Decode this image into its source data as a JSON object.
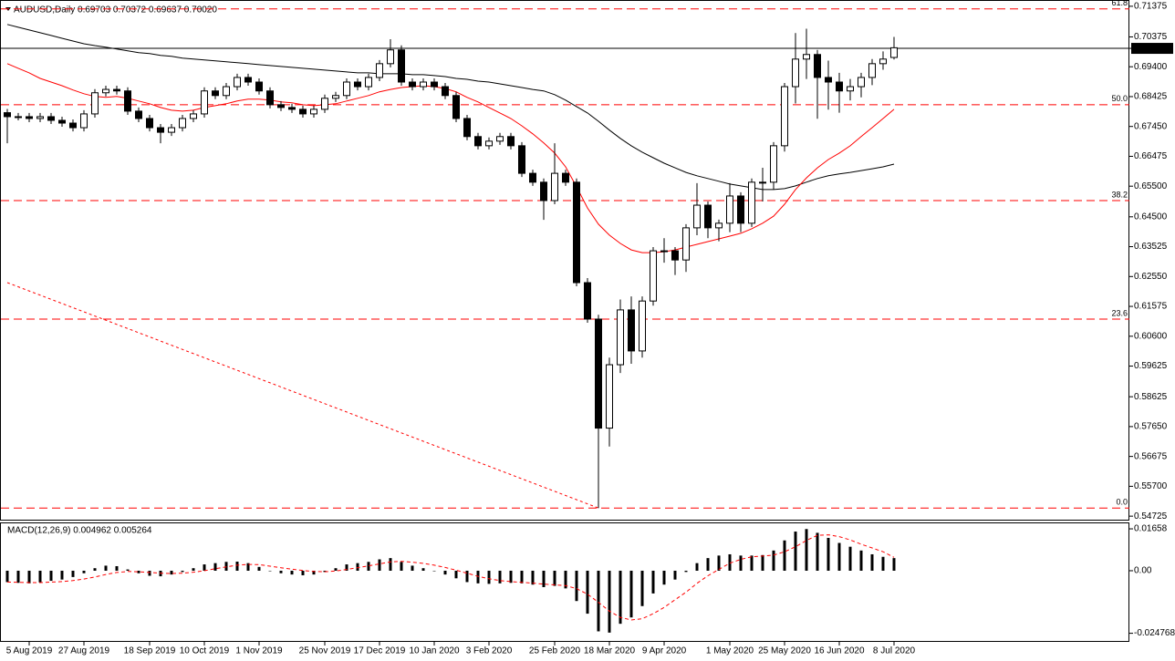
{
  "chart_data": [
    {
      "type": "candlestick",
      "title": "AUDUSD,Daily  0.69703 0.70372 0.69637 0.70020",
      "categories": [
        null,
        null,
        "5 Aug 2019",
        null,
        null,
        null,
        null,
        "27 Aug 2019",
        null,
        null,
        null,
        null,
        null,
        "18 Sep 2019",
        null,
        null,
        null,
        null,
        "10 Oct 2019",
        null,
        null,
        null,
        null,
        "1 Nov 2019",
        null,
        null,
        null,
        null,
        null,
        "25 Nov 2019",
        null,
        null,
        null,
        null,
        "17 Dec 2019",
        null,
        null,
        null,
        null,
        "10 Jan 2020",
        null,
        null,
        null,
        null,
        "3 Feb 2020",
        null,
        null,
        null,
        null,
        null,
        "25 Feb 2020",
        null,
        null,
        null,
        null,
        "18 Mar 2020",
        null,
        null,
        null,
        null,
        "9 Apr 2020",
        null,
        null,
        null,
        null,
        null,
        "1 May 2020",
        null,
        null,
        null,
        null,
        "25 May 2020",
        null,
        null,
        null,
        null,
        "16 Jun 2020",
        null,
        null,
        null,
        null,
        "8 Jul 2020"
      ],
      "open": [
        0.679,
        0.6777,
        0.6777,
        0.6771,
        0.6777,
        0.6765,
        0.6756,
        0.6741,
        0.6786,
        0.6855,
        0.6866,
        0.6861,
        0.6795,
        0.6771,
        0.6741,
        0.6726,
        0.6741,
        0.6771,
        0.6786,
        0.6861,
        0.6846,
        0.6875,
        0.6905,
        0.689,
        0.6861,
        0.6816,
        0.6807,
        0.6801,
        0.6786,
        0.6801,
        0.6837,
        0.6846,
        0.689,
        0.6875,
        0.6905,
        0.695,
        0.6995,
        0.689,
        0.6875,
        0.689,
        0.6875,
        0.6846,
        0.6771,
        0.6712,
        0.6682,
        0.6697,
        0.6712,
        0.6682,
        0.6592,
        0.6563,
        0.6503,
        0.6592,
        0.6563,
        0.6235,
        0.6116,
        0.576,
        0.5967,
        0.6146,
        0.6012,
        0.6175,
        0.6339,
        0.6339,
        0.6309,
        0.6414,
        0.6488,
        0.6414,
        0.6429,
        0.6518,
        0.6429,
        0.6563,
        0.6563,
        0.6682,
        0.6875,
        0.6965,
        0.698,
        0.6905,
        0.689,
        0.6861,
        0.6875,
        0.6905,
        0.695,
        0.69703
      ],
      "high": [
        0.6802,
        0.6789,
        0.6789,
        0.6789,
        0.6789,
        0.6777,
        0.6768,
        0.6798,
        0.6867,
        0.6878,
        0.6878,
        0.6873,
        0.6807,
        0.6783,
        0.6753,
        0.6753,
        0.6783,
        0.6798,
        0.6873,
        0.6873,
        0.6887,
        0.6917,
        0.6917,
        0.6902,
        0.6873,
        0.6828,
        0.6819,
        0.6813,
        0.6813,
        0.6849,
        0.6858,
        0.6902,
        0.6902,
        0.6917,
        0.6962,
        0.703,
        0.701,
        0.6902,
        0.6902,
        0.6902,
        0.6887,
        0.6858,
        0.6783,
        0.6724,
        0.6709,
        0.6724,
        0.6724,
        0.6694,
        0.6604,
        0.6575,
        0.669,
        0.6604,
        0.6575,
        0.625,
        0.613,
        0.599,
        0.618,
        0.619,
        0.619,
        0.6351,
        0.638,
        0.6351,
        0.6426,
        0.656,
        0.65,
        0.6441,
        0.656,
        0.653,
        0.6575,
        0.661,
        0.6694,
        0.6887,
        0.705,
        0.7064,
        0.6995,
        0.696,
        0.692,
        0.69,
        0.692,
        0.6965,
        0.699,
        0.70372
      ],
      "low": [
        0.669,
        0.6765,
        0.6759,
        0.6759,
        0.6753,
        0.6744,
        0.6729,
        0.6729,
        0.6774,
        0.6843,
        0.6849,
        0.6783,
        0.6759,
        0.6729,
        0.669,
        0.6714,
        0.6729,
        0.6759,
        0.6774,
        0.6834,
        0.6834,
        0.6863,
        0.6878,
        0.6849,
        0.6804,
        0.6795,
        0.6789,
        0.6774,
        0.6774,
        0.6789,
        0.6825,
        0.6834,
        0.6863,
        0.6863,
        0.6893,
        0.6938,
        0.6878,
        0.6863,
        0.6863,
        0.6863,
        0.6834,
        0.6759,
        0.67,
        0.667,
        0.667,
        0.6685,
        0.667,
        0.658,
        0.6551,
        0.644,
        0.6491,
        0.6551,
        0.6223,
        0.6104,
        0.5499,
        0.57,
        0.594,
        0.597,
        0.599,
        0.616,
        0.63,
        0.626,
        0.627,
        0.639,
        0.638,
        0.637,
        0.64,
        0.64,
        0.6417,
        0.65,
        0.654,
        0.6663,
        0.682,
        0.69,
        0.677,
        0.68,
        0.679,
        0.683,
        0.684,
        0.688,
        0.693,
        0.69637
      ],
      "close": [
        0.6777,
        0.6777,
        0.6771,
        0.6777,
        0.6765,
        0.6756,
        0.6741,
        0.6786,
        0.6855,
        0.6866,
        0.6861,
        0.6795,
        0.6771,
        0.6741,
        0.6726,
        0.6741,
        0.6771,
        0.6786,
        0.6861,
        0.6846,
        0.6875,
        0.6905,
        0.689,
        0.6861,
        0.6816,
        0.6807,
        0.6801,
        0.6786,
        0.6801,
        0.6837,
        0.6846,
        0.689,
        0.6875,
        0.6905,
        0.695,
        0.6995,
        0.689,
        0.6875,
        0.689,
        0.6875,
        0.6846,
        0.6771,
        0.6712,
        0.6682,
        0.6697,
        0.6712,
        0.6682,
        0.6592,
        0.6563,
        0.6503,
        0.6592,
        0.6563,
        0.6235,
        0.6116,
        0.576,
        0.5967,
        0.6146,
        0.6012,
        0.6175,
        0.6339,
        0.6339,
        0.6309,
        0.6414,
        0.6488,
        0.6414,
        0.6429,
        0.6518,
        0.6429,
        0.6563,
        0.6563,
        0.6682,
        0.6875,
        0.6965,
        0.698,
        0.6905,
        0.689,
        0.6861,
        0.6875,
        0.6905,
        0.695,
        0.6965,
        0.7002
      ],
      "up_color": "#ffffff",
      "down_color": "#000000",
      "series": [
        {
          "color": "#000000",
          "values": [
            0.7078,
            0.7069,
            0.706,
            0.7051,
            0.7042,
            0.7033,
            0.7024,
            0.7015,
            0.7009,
            0.7004,
            0.6998,
            0.6992,
            0.6986,
            0.6983,
            0.6977,
            0.6974,
            0.6968,
            0.6965,
            0.6962,
            0.6959,
            0.6956,
            0.6953,
            0.695,
            0.6947,
            0.6944,
            0.6941,
            0.6938,
            0.6935,
            0.6932,
            0.6929,
            0.6926,
            0.6923,
            0.692,
            0.692,
            0.6917,
            0.6917,
            0.6917,
            0.6914,
            0.6914,
            0.6911,
            0.6908,
            0.6902,
            0.6899,
            0.6893,
            0.689,
            0.6884,
            0.6878,
            0.6872,
            0.6866,
            0.6861,
            0.6849,
            0.6831,
            0.681,
            0.6789,
            0.6762,
            0.6733,
            0.6706,
            0.6682,
            0.6661,
            0.6643,
            0.6625,
            0.661,
            0.6595,
            0.6584,
            0.6575,
            0.6566,
            0.6557,
            0.6551,
            0.6545,
            0.6539,
            0.6539,
            0.6542,
            0.6551,
            0.6563,
            0.6575,
            0.6584,
            0.659,
            0.6595,
            0.6601,
            0.6607,
            0.6613,
            0.6622
          ]
        },
        {
          "color": "#ff0000",
          "values": [
            0.695,
            0.6935,
            0.692,
            0.6902,
            0.689,
            0.6878,
            0.6864,
            0.6852,
            0.6843,
            0.684,
            0.6843,
            0.6837,
            0.6828,
            0.6819,
            0.6807,
            0.6798,
            0.6795,
            0.6798,
            0.6807,
            0.6813,
            0.6819,
            0.6828,
            0.6834,
            0.6834,
            0.6831,
            0.6825,
            0.6822,
            0.6816,
            0.6813,
            0.6816,
            0.6819,
            0.6828,
            0.6837,
            0.6846,
            0.6858,
            0.6866,
            0.6872,
            0.6875,
            0.6878,
            0.6875,
            0.6869,
            0.6858,
            0.684,
            0.6825,
            0.6807,
            0.6789,
            0.6771,
            0.6747,
            0.6721,
            0.6691,
            0.6658,
            0.6613,
            0.6548,
            0.6479,
            0.6426,
            0.639,
            0.6363,
            0.6342,
            0.6333,
            0.6333,
            0.6336,
            0.6342,
            0.6351,
            0.636,
            0.6369,
            0.6378,
            0.6387,
            0.6396,
            0.6411,
            0.6429,
            0.6452,
            0.6491,
            0.6539,
            0.6577,
            0.661,
            0.6637,
            0.6658,
            0.6682,
            0.6712,
            0.6741,
            0.6771,
            0.6801
          ]
        }
      ],
      "levels": [
        {
          "label": "61.8",
          "value": 0.7129
        },
        {
          "label": "50.0",
          "value": 0.6816
        },
        {
          "label": "38.2",
          "value": 0.6503
        },
        {
          "label": "23.6",
          "value": 0.6116
        },
        {
          "label": "0.0",
          "value": 0.5499
        }
      ],
      "level_color": "#ff0000",
      "trendline": {
        "x": [
          0,
          54
        ],
        "values": [
          0.6235,
          0.5499
        ],
        "color": "#ff0000"
      },
      "price_line": 0.7,
      "ylim": [
        0.5461,
        0.7149
      ],
      "yticks": [
        0.71375,
        0.70375,
        {
          "value": 0.7,
          "label": "0.70000"
        },
        {
          "value": 0.694,
          "label": "0.69400"
        },
        0.68425,
        {
          "value": 0.6745,
          "label": "0.67450"
        },
        0.66475,
        {
          "value": 0.655,
          "label": "0.65500"
        },
        {
          "value": 0.645,
          "label": "0.64500"
        },
        0.63525,
        {
          "value": 0.6255,
          "label": "0.62550"
        },
        0.61575,
        {
          "value": 0.606,
          "label": "0.60600"
        },
        0.59625,
        0.58625,
        {
          "value": 0.5765,
          "label": "0.57650"
        },
        0.56675,
        {
          "value": 0.557,
          "label": "0.55700"
        },
        0.54725
      ]
    },
    {
      "type": "macd",
      "title": "MACD(12,26,9) 0.004962 0.005264",
      "color": "#000000",
      "values": [
        -0.0045,
        -0.0048,
        -0.005,
        -0.0046,
        -0.004,
        -0.0035,
        -0.0025,
        -0.001,
        0.001,
        0.002,
        0.0018,
        0.0005,
        -0.001,
        -0.002,
        -0.0022,
        -0.0015,
        -0.0005,
        0.001,
        0.0025,
        0.003,
        0.0035,
        0.0036,
        0.003,
        0.0015,
        0.0,
        -0.001,
        -0.0015,
        -0.0018,
        -0.0015,
        -0.0005,
        0.001,
        0.0025,
        0.003,
        0.0035,
        0.0045,
        0.005,
        0.0035,
        0.002,
        0.001,
        0.0,
        -0.0015,
        -0.003,
        -0.0045,
        -0.005,
        -0.0052,
        -0.005,
        -0.0048,
        -0.005,
        -0.0055,
        -0.0065,
        -0.006,
        -0.007,
        -0.012,
        -0.017,
        -0.024,
        -0.0245,
        -0.021,
        -0.0185,
        -0.014,
        -0.009,
        -0.0055,
        -0.0035,
        -0.0005,
        0.003,
        0.005,
        0.006,
        0.0065,
        0.006,
        0.006,
        0.0062,
        0.008,
        0.012,
        0.0155,
        0.0165,
        0.015,
        0.013,
        0.011,
        0.0095,
        0.008,
        0.0065,
        0.0055,
        0.005
      ],
      "signal": {
        "color": "#ff0000",
        "values": [
          -0.0045,
          -0.0046,
          -0.0047,
          -0.0047,
          -0.0045,
          -0.0043,
          -0.0039,
          -0.0033,
          -0.0025,
          -0.0015,
          -0.0007,
          -0.0003,
          -0.0004,
          -0.0007,
          -0.001,
          -0.0011,
          -0.001,
          -0.0006,
          0.0,
          0.0008,
          0.0015,
          0.0022,
          0.0025,
          0.0024,
          0.0018,
          0.0012,
          0.0006,
          0.0001,
          -0.0003,
          -0.0004,
          -0.0001,
          0.0005,
          0.0012,
          0.0019,
          0.0027,
          0.0035,
          0.0037,
          0.0034,
          0.0029,
          0.0022,
          0.0013,
          0.0002,
          -0.001,
          -0.0022,
          -0.0032,
          -0.0039,
          -0.0043,
          -0.0046,
          -0.0049,
          -0.0053,
          -0.0056,
          -0.0059,
          -0.0071,
          -0.0093,
          -0.0125,
          -0.016,
          -0.0185,
          -0.0195,
          -0.019,
          -0.017,
          -0.0145,
          -0.0115,
          -0.0085,
          -0.005,
          -0.002,
          0.0005,
          0.003,
          0.0045,
          0.0055,
          0.0058,
          0.0062,
          0.0075,
          0.0095,
          0.012,
          0.014,
          0.0142,
          0.0135,
          0.0122,
          0.0105,
          0.009,
          0.0075,
          0.0053
        ]
      },
      "ylim": [
        -0.0278,
        0.0184
      ],
      "yticks": [
        0.01658,
        {
          "value": 0,
          "label": "0.00"
        },
        -0.024768
      ]
    }
  ]
}
